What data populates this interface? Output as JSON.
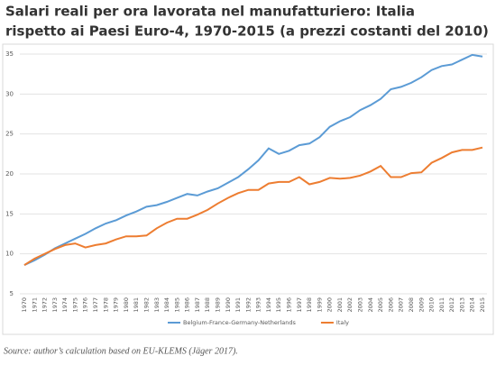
{
  "chart_data": {
    "type": "line",
    "title": [
      "Salari reali per ora lavorata nel manufatturiero: Italia",
      "rispetto ai Paesi Euro-4, 1970-2015 (a prezzi costanti del 2010)"
    ],
    "categories": [
      "1970",
      "1971",
      "1972",
      "1973",
      "1974",
      "1975",
      "1976",
      "1977",
      "1978",
      "1979",
      "1980",
      "1981",
      "1982",
      "1983",
      "1984",
      "1985",
      "1986",
      "1987",
      "1988",
      "1989",
      "1990",
      "1991",
      "1992",
      "1993",
      "1994",
      "1995",
      "1996",
      "1997",
      "1998",
      "1999",
      "2000",
      "2001",
      "2002",
      "2003",
      "2004",
      "2005",
      "2006",
      "2007",
      "2008",
      "2009",
      "2010",
      "2011",
      "2012",
      "2013",
      "2014",
      "2015"
    ],
    "series": [
      {
        "name": "Belgium-France-Germany-Netherlands",
        "color": "#5b9bd5",
        "values": [
          8.6,
          9.2,
          9.9,
          10.7,
          11.3,
          11.9,
          12.5,
          13.2,
          13.8,
          14.2,
          14.8,
          15.3,
          15.9,
          16.1,
          16.5,
          17.0,
          17.5,
          17.3,
          17.8,
          18.2,
          18.9,
          19.6,
          20.6,
          21.7,
          23.2,
          22.5,
          22.9,
          23.6,
          23.8,
          24.6,
          25.9,
          26.6,
          27.1,
          28.0,
          28.6,
          29.4,
          30.6,
          30.9,
          31.4,
          32.1,
          33.0,
          33.5,
          33.7,
          34.3,
          34.9,
          34.7
        ]
      },
      {
        "name": "Italy",
        "color": "#ed7d31",
        "values": [
          8.6,
          9.4,
          10.0,
          10.6,
          11.1,
          11.3,
          10.8,
          11.1,
          11.3,
          11.8,
          12.2,
          12.2,
          12.3,
          13.2,
          13.9,
          14.4,
          14.4,
          14.9,
          15.5,
          16.3,
          17.0,
          17.6,
          18.0,
          18.0,
          18.8,
          19.0,
          19.0,
          19.6,
          18.7,
          19.0,
          19.5,
          19.4,
          19.5,
          19.8,
          20.3,
          21.0,
          19.6,
          19.6,
          20.1,
          20.2,
          21.4,
          22.0,
          22.7,
          23.0,
          23.0,
          23.3
        ]
      }
    ],
    "ylim": [
      5,
      35
    ],
    "yticks": [
      5,
      10,
      15,
      20,
      25,
      30,
      35
    ],
    "grid": true,
    "legend": "bottom",
    "source": "Source: author’s calculation based on EU-KLEMS (Jäger 2017)."
  }
}
